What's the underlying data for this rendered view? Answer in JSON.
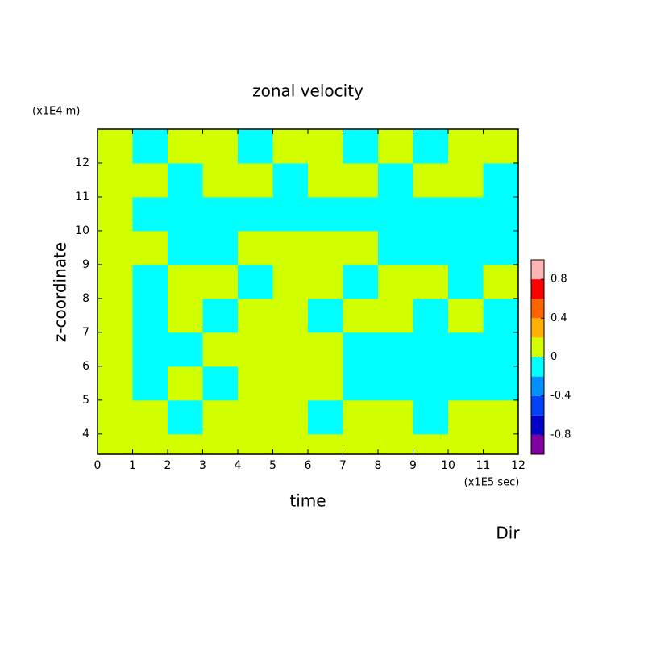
{
  "chart_data": {
    "type": "contour",
    "title": "zonal velocity",
    "y_unit": "(x1E4 m)",
    "ylabel": "z-coordinate",
    "xlabel": "time",
    "x_unit": "(x1E5 sec)",
    "footer": "Dir",
    "xlim": [
      0,
      12
    ],
    "xticks": [
      0,
      1,
      2,
      3,
      4,
      5,
      6,
      7,
      8,
      9,
      10,
      11,
      12
    ],
    "ylim": [
      3.4,
      13
    ],
    "yticks": [
      4,
      5,
      6,
      7,
      8,
      9,
      10,
      11,
      12
    ],
    "x_edges": [
      0,
      1,
      2,
      3,
      4,
      5,
      6,
      7,
      8,
      9,
      10,
      11,
      12
    ],
    "y_edges": [
      3.4,
      4,
      5,
      6,
      7,
      8,
      9,
      10,
      11,
      12,
      13
    ],
    "z": [
      [
        0.1,
        0.1,
        0.1,
        0.1,
        0.1,
        0.1,
        0.1,
        0.1,
        0.1,
        0.1,
        0.1,
        0.1
      ],
      [
        0.1,
        0.1,
        -0.1,
        0.1,
        0.1,
        0.1,
        -0.1,
        0.1,
        0.1,
        -0.1,
        0.1,
        0.1
      ],
      [
        0.1,
        -0.1,
        0.1,
        -0.1,
        0.1,
        0.1,
        0.1,
        -0.1,
        -0.1,
        -0.1,
        -0.1,
        -0.1
      ],
      [
        0.1,
        -0.1,
        -0.1,
        0.1,
        0.1,
        0.1,
        0.1,
        -0.1,
        -0.1,
        -0.1,
        -0.1,
        -0.1
      ],
      [
        0.1,
        -0.1,
        0.1,
        -0.1,
        0.1,
        0.1,
        -0.1,
        0.1,
        0.1,
        -0.1,
        0.1,
        -0.1
      ],
      [
        0.1,
        -0.1,
        0.1,
        0.1,
        -0.1,
        0.1,
        0.1,
        -0.1,
        0.1,
        0.1,
        -0.1,
        0.1
      ],
      [
        0.1,
        0.1,
        -0.1,
        -0.1,
        0.1,
        0.1,
        0.1,
        0.1,
        -0.1,
        -0.1,
        -0.1,
        -0.1
      ],
      [
        0.1,
        -0.1,
        -0.1,
        -0.1,
        -0.1,
        -0.1,
        -0.1,
        -0.1,
        -0.1,
        -0.1,
        -0.1,
        -0.1
      ],
      [
        0.1,
        0.1,
        -0.1,
        0.1,
        0.1,
        -0.1,
        0.1,
        0.1,
        -0.1,
        0.1,
        0.1,
        -0.1
      ],
      [
        0.1,
        -0.1,
        0.1,
        0.1,
        -0.1,
        0.1,
        0.1,
        -0.1,
        0.1,
        -0.1,
        0.1,
        0.1
      ]
    ],
    "levels": [
      -1,
      -0.8,
      -0.6,
      -0.4,
      -0.2,
      0,
      0.2,
      0.4,
      0.6,
      0.8,
      1
    ],
    "colors": [
      "#8000a0",
      "#0000c8",
      "#0040ff",
      "#0090ff",
      "#00ffff",
      "#d2ff00",
      "#ffb000",
      "#ff6400",
      "#ff0000",
      "#ffb4b4"
    ],
    "colorbar_ticks": [
      -0.8,
      -0.4,
      0,
      0.4,
      0.8
    ]
  }
}
